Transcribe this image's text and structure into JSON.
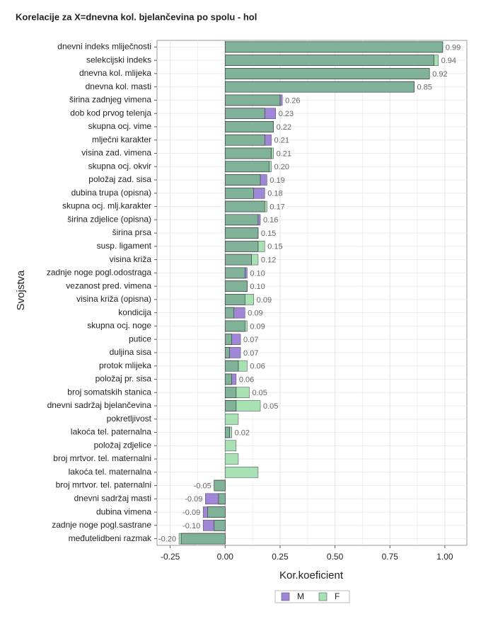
{
  "chart_data": {
    "type": "bar",
    "orientation": "horizontal",
    "title": "Korelacije za X=dnevna kol. bjelančevina po spolu - hol",
    "x_label": "Kor.koeficient",
    "y_label": "Svojstva",
    "categories": [
      "dnevni indeks mliječnosti",
      "selekcijski indeks",
      "dnevna kol. mlijeka",
      "dnevna kol. masti",
      "širina zadnjeg vimena",
      "dob kod prvog telenja",
      "skupna ocj. vime",
      "mlječni karakter",
      "visina zad. vimena",
      "skupna ocj. okvir",
      "položaj zad. sisa",
      "dubina trupa (opisna)",
      "skupna ocj. mlj.karakter",
      "širina zdjelice (opisna)",
      "širina prsa",
      "susp. ligament",
      "visina križa",
      "zadnje noge pogl.odostraga",
      "vezanost pred. vimena",
      "visina križa (opisna)",
      "kondicija",
      "skupna ocj. noge",
      "putice",
      "duljina sisa",
      "protok mlijeka",
      "položaj pr. sisa",
      "broj somatskih stanica",
      "dnevni sadržaj bjelančevina",
      "pokretljivost",
      "lakoća tel. paternalna",
      "položaj zdjelice",
      "broj mrtvor. tel. maternalni",
      "lakoća tel. maternalna",
      "broj mrtvor. tel. paternalni",
      "dnevni sadržaj masti",
      "dubina vimena",
      "zadnje noge pogl.sastrane",
      "međutelidbeni razmak"
    ],
    "series": [
      {
        "name": "M",
        "color": "#9f86d6",
        "values": [
          0.99,
          0.95,
          0.93,
          0.86,
          0.26,
          0.23,
          0.22,
          0.21,
          0.21,
          0.2,
          0.19,
          0.18,
          0.18,
          0.16,
          0.15,
          0.15,
          0.12,
          0.1,
          0.1,
          0.09,
          0.09,
          0.09,
          0.07,
          0.07,
          0.06,
          0.05,
          0.05,
          0.05,
          null,
          0.02,
          null,
          null,
          null,
          -0.05,
          -0.09,
          -0.1,
          -0.1,
          -0.2
        ]
      },
      {
        "name": "F",
        "color": "#a8e2b2",
        "values": [
          0.99,
          0.97,
          0.93,
          0.86,
          0.25,
          0.18,
          0.22,
          0.18,
          0.22,
          0.21,
          0.16,
          0.13,
          0.19,
          0.15,
          0.15,
          0.18,
          0.15,
          0.09,
          0.1,
          0.13,
          0.04,
          0.1,
          0.03,
          0.02,
          0.1,
          0.03,
          0.11,
          0.16,
          0.06,
          0.03,
          0.05,
          0.06,
          0.15,
          -0.05,
          -0.03,
          -0.08,
          -0.05,
          -0.21
        ]
      }
    ],
    "overlap_color": "#80b29a",
    "values": [
      0.99,
      0.94,
      0.92,
      0.85,
      0.26,
      0.23,
      0.22,
      0.21,
      0.21,
      0.2,
      0.19,
      0.18,
      0.17,
      0.16,
      0.15,
      0.15,
      0.12,
      0.1,
      0.1,
      0.09,
      0.09,
      0.09,
      0.07,
      0.07,
      0.06,
      0.06,
      0.05,
      0.05,
      null,
      0.02,
      null,
      null,
      null,
      -0.05,
      -0.09,
      -0.09,
      -0.1,
      -0.2
    ],
    "value_labels": [
      "0.99",
      "0.94",
      "0.92",
      "0.85",
      "0.26",
      "0.23",
      "0.22",
      "0.21",
      "0.21",
      "0.20",
      "0.19",
      "0.18",
      "0.17",
      "0.16",
      "0.15",
      "0.15",
      "0.12",
      "0.10",
      "0.10",
      "0.09",
      "0.09",
      "0.09",
      "0.07",
      "0.07",
      "0.06",
      "0.06",
      "0.05",
      "0.05",
      null,
      "0.02",
      null,
      null,
      null,
      "-0.05",
      "-0.09",
      "-0.09",
      "-0.10",
      "-0.20"
    ],
    "xlim": [
      -0.31,
      1.1
    ],
    "xticks": [
      {
        "value": -0.25,
        "label": "-0.25"
      },
      {
        "value": 0,
        "label": "0.00"
      },
      {
        "value": 0.25,
        "label": "0.25"
      },
      {
        "value": 0.5,
        "label": "0.50"
      },
      {
        "value": 0.75,
        "label": "0.75"
      },
      {
        "value": 1,
        "label": "1.00"
      }
    ],
    "grid": true,
    "legend": "bottom"
  }
}
